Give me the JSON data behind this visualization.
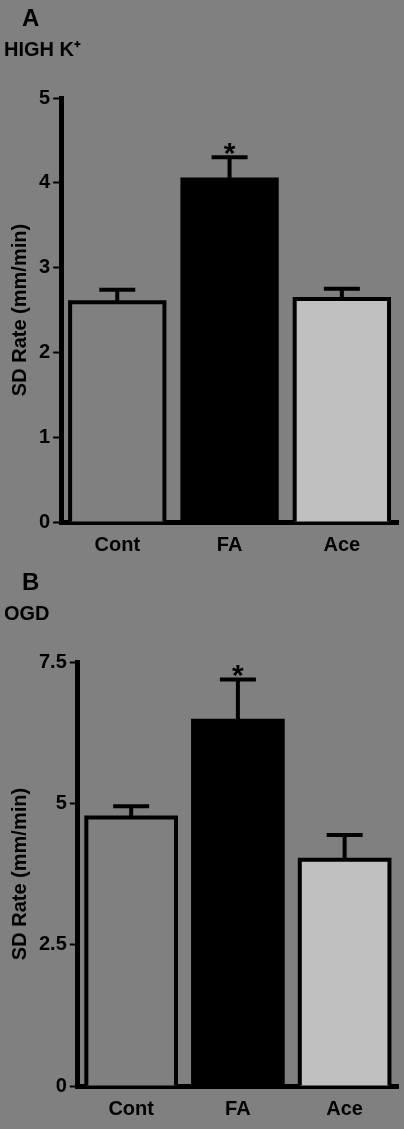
{
  "chart_data": [
    {
      "type": "bar",
      "title": "HIGH K⁺",
      "ylabel": "SD Rate (mm/min)",
      "categories": [
        "Cont",
        "FA",
        "Ace"
      ],
      "values": [
        2.59,
        4.04,
        2.63
      ],
      "errors": [
        0.15,
        0.26,
        0.12
      ],
      "colors": [
        "#808080",
        "#000000",
        "#c0c0c0"
      ],
      "ylim": [
        0,
        5
      ],
      "yticks": [
        0,
        1,
        2,
        3,
        4,
        5
      ],
      "grid": false,
      "legend": false,
      "annotations": [
        "A",
        {
          "text": "*",
          "x": "FA",
          "y": 4.3
        }
      ]
    },
    {
      "type": "bar",
      "title": "OGD",
      "ylabel": "SD Rate (mm/min)",
      "categories": [
        "Cont",
        "FA",
        "Ace"
      ],
      "values": [
        4.75,
        6.46,
        4.0
      ],
      "errors": [
        0.2,
        0.73,
        0.44
      ],
      "colors": [
        "#808080",
        "#000000",
        "#c0c0c0"
      ],
      "ylim": [
        0,
        7.5
      ],
      "yticks": [
        0,
        2.5,
        5,
        7.5
      ],
      "grid": false,
      "legend": false,
      "annotations": [
        "B",
        {
          "text": "*",
          "x": "FA",
          "y": 7.19
        }
      ]
    }
  ]
}
